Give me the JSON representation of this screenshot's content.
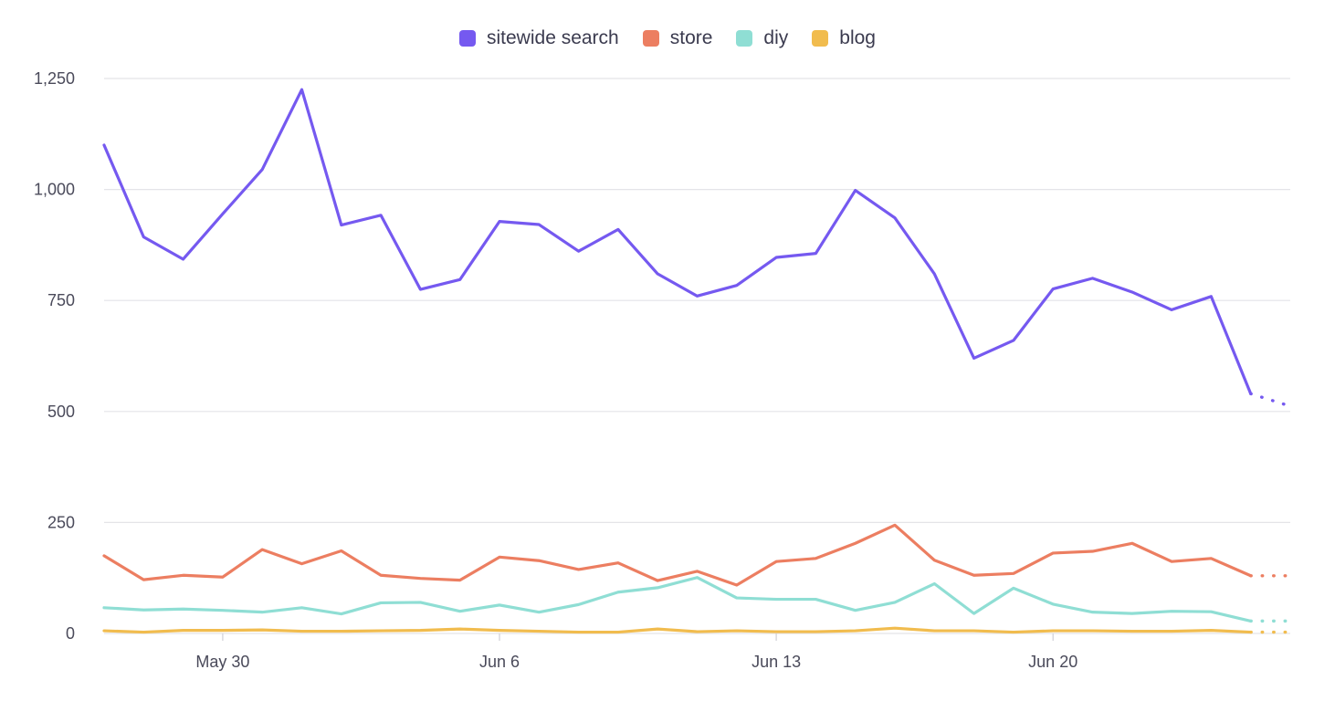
{
  "chart_data": {
    "type": "line",
    "title": "",
    "xlabel": "",
    "ylabel": "",
    "x": [
      "2021-05-27",
      "2021-05-28",
      "2021-05-29",
      "2021-05-30",
      "2021-05-31",
      "2021-06-01",
      "2021-06-02",
      "2021-06-03",
      "2021-06-04",
      "2021-06-05",
      "2021-06-06",
      "2021-06-07",
      "2021-06-08",
      "2021-06-09",
      "2021-06-10",
      "2021-06-11",
      "2021-06-12",
      "2021-06-13",
      "2021-06-14",
      "2021-06-15",
      "2021-06-16",
      "2021-06-17",
      "2021-06-18",
      "2021-06-19",
      "2021-06-20",
      "2021-06-21",
      "2021-06-22",
      "2021-06-23",
      "2021-06-24",
      "2021-06-25",
      "2021-06-26"
    ],
    "x_ticks": [
      "May 30",
      "Jun 6",
      "Jun 13",
      "Jun 20"
    ],
    "y_ticks": [
      "0",
      "250",
      "500",
      "750",
      "1,000",
      "1,250"
    ],
    "ylim": [
      0,
      1250
    ],
    "grid": true,
    "legend_position": "top-center",
    "partial_last_point": true,
    "series": [
      {
        "name": "sitewide search",
        "color": "#7559f0",
        "values": [
          1100,
          893,
          843,
          945,
          1045,
          1225,
          920,
          942,
          775,
          797,
          928,
          921,
          861,
          910,
          810,
          760,
          784,
          847,
          856,
          998,
          936,
          810,
          620,
          660,
          776,
          800,
          769,
          729,
          759,
          540,
          512
        ]
      },
      {
        "name": "store",
        "color": "#ec7e61",
        "values": [
          175,
          121,
          131,
          127,
          189,
          157,
          186,
          131,
          124,
          120,
          172,
          164,
          144,
          159,
          119,
          140,
          109,
          162,
          169,
          203,
          244,
          165,
          131,
          135,
          181,
          185,
          203,
          162,
          169,
          130,
          130
        ]
      },
      {
        "name": "diy",
        "color": "#8fded4",
        "values": [
          58,
          53,
          55,
          52,
          48,
          58,
          44,
          69,
          70,
          50,
          64,
          48,
          65,
          93,
          103,
          126,
          80,
          77,
          77,
          52,
          70,
          112,
          45,
          102,
          66,
          48,
          45,
          50,
          49,
          28,
          28
        ]
      },
      {
        "name": "blog",
        "color": "#f1bc4e",
        "values": [
          6,
          3,
          7,
          7,
          8,
          5,
          5,
          6,
          7,
          10,
          7,
          5,
          3,
          3,
          10,
          4,
          6,
          4,
          4,
          6,
          12,
          6,
          6,
          3,
          6,
          6,
          5,
          5,
          7,
          3,
          3
        ]
      }
    ]
  }
}
